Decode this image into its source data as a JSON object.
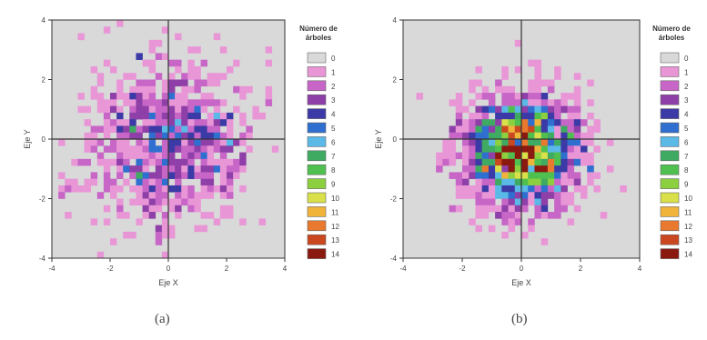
{
  "chart_data": [
    {
      "type": "heatmap",
      "panel_label": "(a)",
      "xlabel": "Eje X",
      "ylabel": "Eje Y",
      "xlim": [
        -4,
        4
      ],
      "ylim": [
        -4,
        4
      ],
      "x_ticks": [
        -4,
        -2,
        0,
        2,
        4
      ],
      "y_ticks": [
        -4,
        -2,
        0,
        2,
        4
      ],
      "grid": false,
      "legend_title": "Número de árboles",
      "legend_position": "right",
      "distribution": {
        "spread": 1.45,
        "samples": 900
      }
    },
    {
      "type": "heatmap",
      "panel_label": "(b)",
      "xlabel": "Eje X",
      "ylabel": "Eje Y",
      "xlim": [
        -4,
        4
      ],
      "ylim": [
        -4,
        4
      ],
      "x_ticks": [
        -4,
        -2,
        0,
        2,
        4
      ],
      "y_ticks": [
        -4,
        -2,
        0,
        2,
        4
      ],
      "grid": false,
      "legend_title": "Número de árboles",
      "legend_position": "right",
      "distribution": {
        "spread": 1.0,
        "samples": 1700
      }
    }
  ],
  "legend": {
    "values": [
      0,
      1,
      2,
      3,
      4,
      5,
      6,
      7,
      8,
      9,
      10,
      11,
      12,
      13,
      14
    ],
    "colors": [
      "#d9d9d9",
      "#e996d7",
      "#c766c7",
      "#8e3fa8",
      "#3b3aa6",
      "#2f6fcf",
      "#5ab9e6",
      "#3faa62",
      "#4fc04f",
      "#8ccf3f",
      "#d9e04a",
      "#f0b43a",
      "#e8792e",
      "#c9481f",
      "#8a1a10"
    ]
  }
}
